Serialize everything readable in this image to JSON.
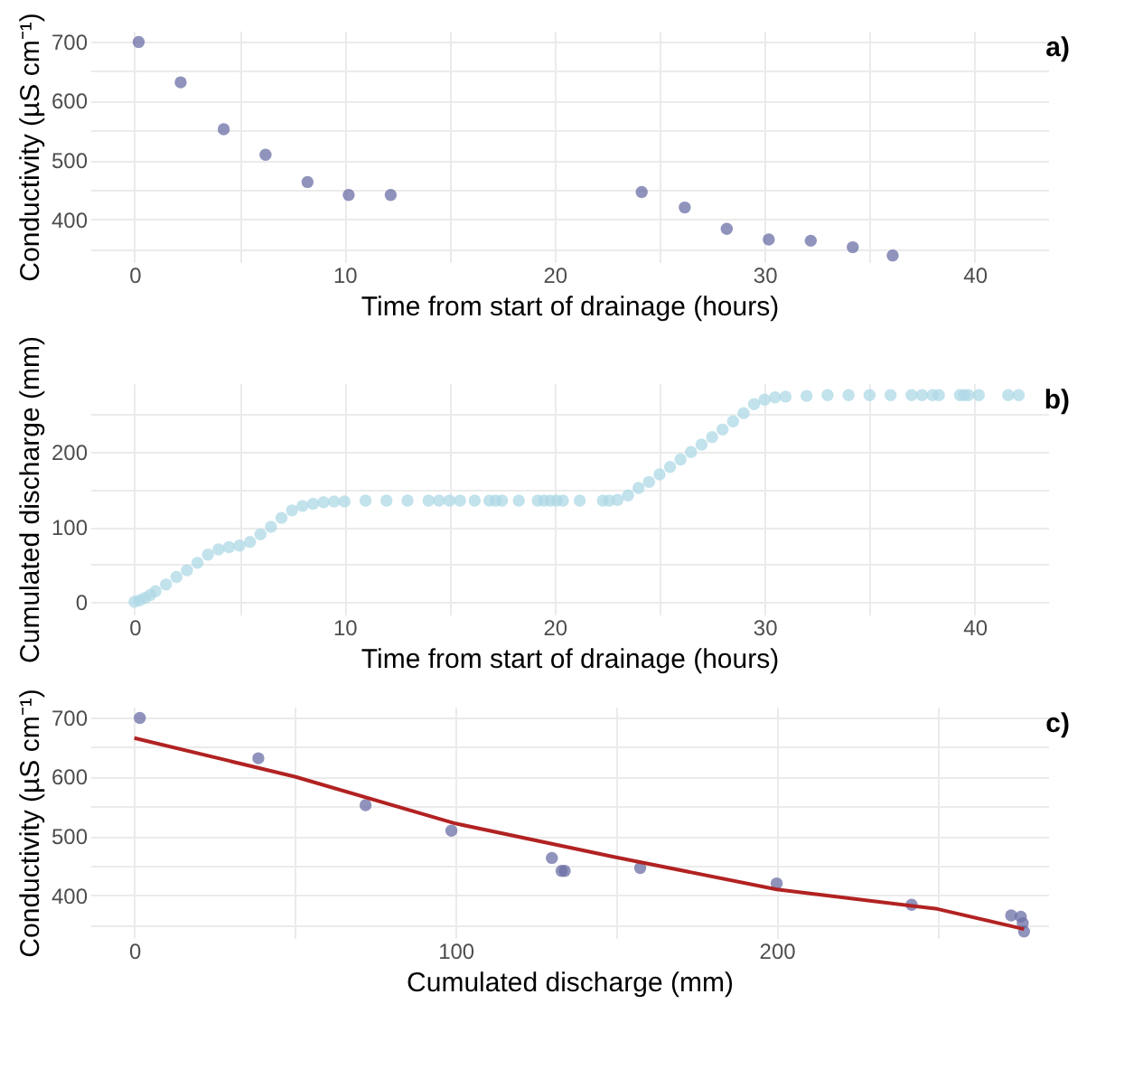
{
  "chart_data": [
    {
      "type": "scatter",
      "xlabel": "Time from start of drainage (hours)",
      "ylabel": "Conductivity (µS cm⁻¹)",
      "annotations": [
        "a)"
      ],
      "grid": true,
      "x": [
        0.2,
        2.2,
        4.25,
        6.24,
        8.24,
        10.2,
        12.2,
        24.15,
        26.2,
        28.2,
        30.2,
        32.2,
        34.2,
        36.1
      ],
      "series": [
        {
          "color": "#6b6fa6",
          "values": [
            699,
            631,
            552,
            509,
            463,
            441,
            441,
            446,
            420,
            384,
            366,
            364,
            353,
            339
          ]
        }
      ],
      "xlim": [
        -2.1,
        43.5
      ],
      "xticks": [
        0,
        {
          "value": 5,
          "label": null
        },
        10,
        {
          "value": 15,
          "label": null
        },
        20,
        {
          "value": 25,
          "label": null
        },
        30,
        {
          "value": 35,
          "label": null
        },
        40
      ],
      "ylim": [
        328,
        718
      ],
      "yticks": [
        {
          "value": 350,
          "label": null
        },
        400,
        {
          "value": 450,
          "label": null
        },
        500,
        {
          "value": 550,
          "label": null
        },
        600,
        {
          "value": 650,
          "label": null
        },
        700
      ]
    },
    {
      "type": "scatter",
      "xlabel": "Time from start of drainage (hours)",
      "ylabel": "Cumulated discharge (mm)",
      "annotations": [
        "b)"
      ],
      "grid": true,
      "x": [
        0,
        0.25,
        0.5,
        0.75,
        1,
        1.5,
        2,
        2.5,
        3,
        3.5,
        4,
        4.5,
        5,
        5.5,
        6,
        6.5,
        7,
        7.5,
        8,
        8.5,
        9,
        9.5,
        10,
        11,
        12,
        13,
        14,
        14.5,
        15,
        15.5,
        16.2,
        16.9,
        17.2,
        17.5,
        18.3,
        19.2,
        19.5,
        19.8,
        20.1,
        20.4,
        21.2,
        22.3,
        22.6,
        23,
        23.5,
        24,
        24.5,
        25,
        25.5,
        26,
        26.5,
        27,
        27.5,
        28,
        28.5,
        29,
        29.5,
        30,
        30.5,
        31,
        32,
        33,
        34,
        35,
        36,
        37,
        37.5,
        38,
        38.3,
        39.3,
        39.5,
        39.7,
        40.2,
        41.6,
        42.1
      ],
      "series": [
        {
          "color": "#add8e6",
          "values": [
            0,
            2,
            5,
            9,
            14,
            23,
            33,
            42,
            52,
            63,
            70,
            73,
            75,
            80,
            90,
            100,
            112,
            122,
            128,
            131,
            133,
            134,
            134,
            135,
            135,
            135,
            135,
            135,
            135,
            135,
            135,
            135,
            135,
            135,
            135,
            135,
            135,
            135,
            135,
            135,
            135,
            135,
            135,
            136,
            142,
            152,
            160,
            170,
            180,
            190,
            200,
            210,
            220,
            230,
            241,
            252,
            264,
            270,
            273,
            274,
            275,
            276,
            276,
            276,
            276,
            276,
            276,
            276,
            276,
            276,
            276,
            276,
            276,
            276,
            276
          ]
        }
      ],
      "xlim": [
        -2.1,
        43.5
      ],
      "xticks": [
        0,
        {
          "value": 5,
          "label": null
        },
        10,
        {
          "value": 15,
          "label": null
        },
        20,
        {
          "value": 25,
          "label": null
        },
        30,
        {
          "value": 35,
          "label": null
        },
        40
      ],
      "ylim": [
        -17,
        292
      ],
      "yticks": [
        0,
        {
          "value": 50,
          "label": null
        },
        100,
        {
          "value": 150,
          "label": null
        },
        200,
        {
          "value": 250,
          "label": null
        }
      ]
    },
    {
      "type": "scatter",
      "xlabel": "Cumulated discharge (mm)",
      "ylabel": "Conductivity (µS cm⁻¹)",
      "annotations": [
        "c)"
      ],
      "grid": true,
      "series": [
        {
          "color": "#6b6fa6",
          "x": [
            1.7,
            38.6,
            72,
            98.7,
            130,
            133,
            134,
            157.5,
            200,
            242,
            273,
            276,
            276.6,
            277
          ],
          "values": [
            699,
            631,
            552,
            509,
            463,
            441,
            441,
            446,
            420,
            384,
            366,
            364,
            353,
            339
          ]
        },
        {
          "type": "line",
          "color": "#b22222",
          "x": [
            0,
            50,
            100,
            150,
            200,
            250,
            277
          ],
          "values": [
            665,
            600,
            521,
            464,
            410,
            377,
            343
          ]
        }
      ],
      "xlim": [
        -13.7,
        284.5
      ],
      "xticks": [
        0,
        {
          "value": 50,
          "label": null
        },
        100,
        {
          "value": 150,
          "label": null
        },
        200,
        {
          "value": 250,
          "label": null
        }
      ],
      "ylim": [
        328,
        718
      ],
      "yticks": [
        {
          "value": 350,
          "label": null
        },
        400,
        {
          "value": 450,
          "label": null
        },
        500,
        {
          "value": 550,
          "label": null
        },
        600,
        {
          "value": 650,
          "label": null
        },
        700
      ]
    }
  ]
}
